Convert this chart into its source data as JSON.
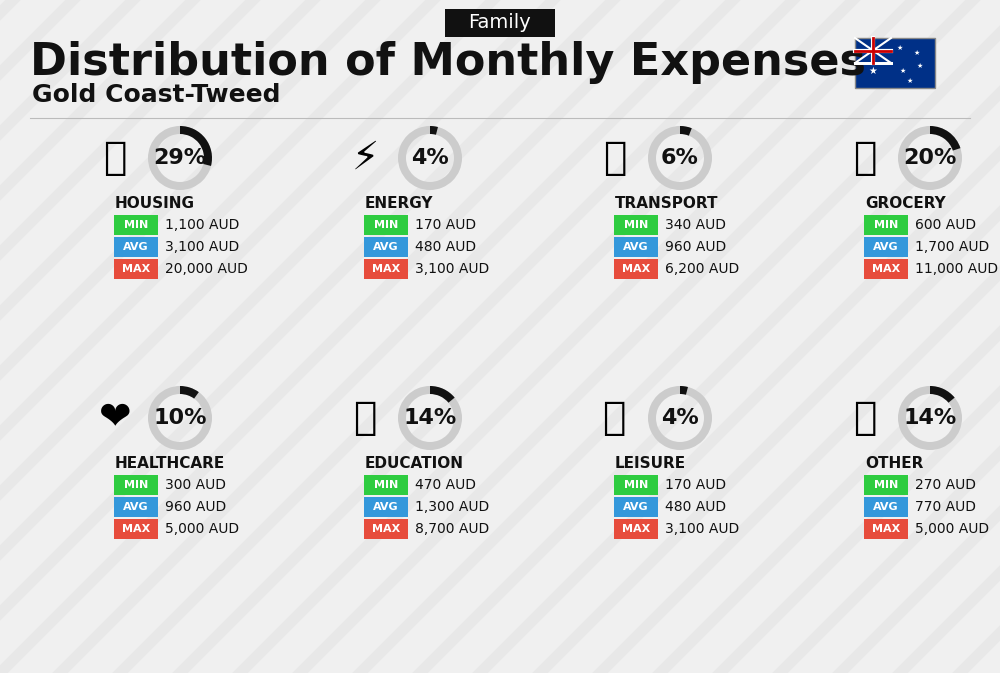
{
  "title": "Distribution of Monthly Expenses",
  "subtitle": "Gold Coast-Tweed",
  "tag": "Family",
  "bg_color": "#f0f0f0",
  "categories": [
    {
      "name": "HOUSING",
      "pct": 29,
      "min": "1,100 AUD",
      "avg": "3,100 AUD",
      "max": "20,000 AUD",
      "row": 0,
      "col": 0
    },
    {
      "name": "ENERGY",
      "pct": 4,
      "min": "170 AUD",
      "avg": "480 AUD",
      "max": "3,100 AUD",
      "row": 0,
      "col": 1
    },
    {
      "name": "TRANSPORT",
      "pct": 6,
      "min": "340 AUD",
      "avg": "960 AUD",
      "max": "6,200 AUD",
      "row": 0,
      "col": 2
    },
    {
      "name": "GROCERY",
      "pct": 20,
      "min": "600 AUD",
      "avg": "1,700 AUD",
      "max": "11,000 AUD",
      "row": 0,
      "col": 3
    },
    {
      "name": "HEALTHCARE",
      "pct": 10,
      "min": "300 AUD",
      "avg": "960 AUD",
      "max": "5,000 AUD",
      "row": 1,
      "col": 0
    },
    {
      "name": "EDUCATION",
      "pct": 14,
      "min": "470 AUD",
      "avg": "1,300 AUD",
      "max": "8,700 AUD",
      "row": 1,
      "col": 1
    },
    {
      "name": "LEISURE",
      "pct": 4,
      "min": "170 AUD",
      "avg": "480 AUD",
      "max": "3,100 AUD",
      "row": 1,
      "col": 2
    },
    {
      "name": "OTHER",
      "pct": 14,
      "min": "270 AUD",
      "avg": "770 AUD",
      "max": "5,000 AUD",
      "row": 1,
      "col": 3
    }
  ],
  "min_color": "#2ecc40",
  "avg_color": "#3498db",
  "max_color": "#e74c3c",
  "label_color_white": "#ffffff",
  "text_color": "#111111",
  "donut_bg": "#cccccc",
  "donut_fg": "#111111",
  "title_fontsize": 32,
  "subtitle_fontsize": 18,
  "tag_fontsize": 14
}
